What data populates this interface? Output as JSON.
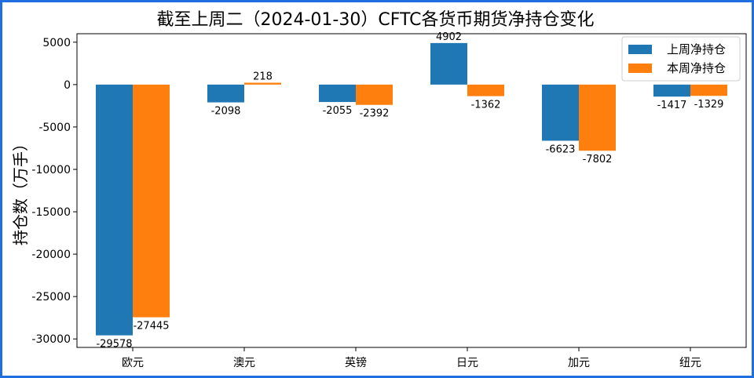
{
  "chart_data": {
    "type": "bar",
    "title": "截至上周二（2024-01-30）CFTC各货币期货净持仓变化",
    "xlabel": "",
    "ylabel": "持仓数（万手）",
    "categories": [
      "欧元",
      "澳元",
      "英镑",
      "日元",
      "加元",
      "纽元"
    ],
    "series": [
      {
        "name": "上周净持仓",
        "values": [
          -29578,
          -2098,
          -2055,
          4902,
          -6623,
          -1417
        ],
        "color": "#1f77b4"
      },
      {
        "name": "本周净持仓",
        "values": [
          -27445,
          218,
          -2392,
          -1362,
          -7802,
          -1329
        ],
        "color": "#ff7f0e"
      }
    ],
    "ylim": [
      -31000,
      6000
    ],
    "yticks": [
      5000,
      0,
      -5000,
      -10000,
      -15000,
      -20000,
      -25000,
      -30000
    ],
    "grid": false,
    "legend": "top-right"
  }
}
